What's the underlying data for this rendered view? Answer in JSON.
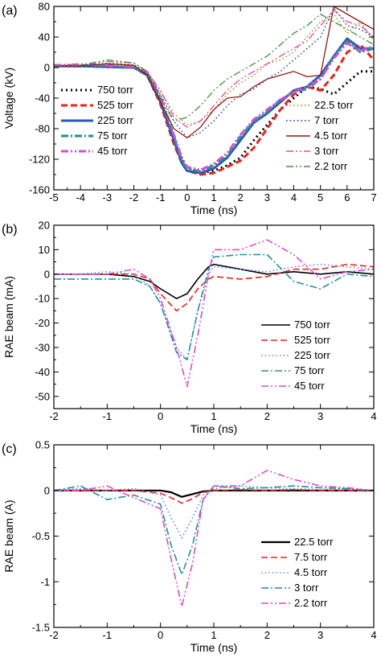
{
  "chart_data": [
    {
      "panel_label": "(a)",
      "type": "line",
      "xlabel": "Time (ns)",
      "ylabel": "Voltage (kV)",
      "xlim": [
        -5,
        7
      ],
      "ylim": [
        -160,
        80
      ],
      "xticks": [
        -5,
        -4,
        -3,
        -2,
        -1,
        0,
        1,
        2,
        3,
        4,
        5,
        6,
        7
      ],
      "yticks": [
        -160,
        -120,
        -80,
        -40,
        0,
        40,
        80
      ],
      "grid": false,
      "legends": [
        {
          "placement": "left-middle",
          "series_indices": [
            0,
            1,
            2,
            3,
            4
          ]
        },
        {
          "placement": "bottom-right",
          "series_indices": [
            5,
            6,
            7,
            8,
            9
          ]
        }
      ],
      "series": [
        {
          "name": "750 torr",
          "color": "#000000",
          "dash": "dotted-heavy",
          "width": 3,
          "x": [
            -5,
            -4,
            -3,
            -2,
            -1.5,
            -1,
            -0.5,
            -0.2,
            0,
            0.5,
            1,
            1.5,
            2,
            2.5,
            3,
            3.5,
            4,
            4.5,
            5,
            5.5,
            6,
            6.5,
            7
          ],
          "y": [
            2,
            2,
            1,
            0,
            -10,
            -45,
            -95,
            -120,
            -130,
            -138,
            -135,
            -128,
            -118,
            -95,
            -75,
            -55,
            -40,
            -25,
            -28,
            -35,
            -20,
            -5,
            -5
          ]
        },
        {
          "name": "525 torr",
          "color": "#e3261e",
          "dash": "dashed",
          "width": 3,
          "x": [
            -5,
            -4,
            -3,
            -2,
            -1.5,
            -1,
            -0.5,
            -0.2,
            0,
            0.5,
            1,
            1.5,
            2,
            2.5,
            3,
            3.5,
            4,
            4.5,
            5,
            5.5,
            6,
            6.5,
            7
          ],
          "y": [
            2,
            2,
            1,
            0,
            -10,
            -48,
            -100,
            -125,
            -135,
            -140,
            -138,
            -130,
            -122,
            -105,
            -80,
            -55,
            -35,
            -25,
            -30,
            -10,
            20,
            30,
            10
          ]
        },
        {
          "name": "225 torr",
          "color": "#2a5ab3",
          "dash": "solid",
          "width": 3,
          "x": [
            -5,
            -4,
            -3,
            -2,
            -1.5,
            -1,
            -0.5,
            -0.2,
            0,
            0.5,
            1,
            1.5,
            2,
            2.5,
            3,
            3.5,
            4,
            4.5,
            5,
            5.5,
            6,
            6.5,
            7
          ],
          "y": [
            2,
            2,
            1,
            0,
            -10,
            -45,
            -95,
            -125,
            -135,
            -138,
            -132,
            -118,
            -95,
            -72,
            -60,
            -45,
            -30,
            -25,
            -10,
            15,
            38,
            25,
            25
          ]
        },
        {
          "name": "75 torr",
          "color": "#2a8f90",
          "dash": "dashdot",
          "width": 3,
          "x": [
            -5,
            -4,
            -3,
            -2,
            -1.5,
            -1,
            -0.5,
            -0.2,
            0,
            0.5,
            1,
            1.5,
            2,
            2.5,
            3,
            3.5,
            4,
            4.5,
            5,
            5.5,
            6,
            6.5,
            7
          ],
          "y": [
            3,
            3,
            2,
            0,
            -8,
            -40,
            -90,
            -122,
            -132,
            -136,
            -128,
            -115,
            -90,
            -70,
            -58,
            -42,
            -32,
            -28,
            -15,
            15,
            35,
            20,
            25
          ]
        },
        {
          "name": "45 torr",
          "color": "#d44fd1",
          "dash": "dashdotdot",
          "width": 3,
          "x": [
            -5,
            -4,
            -3,
            -2,
            -1.5,
            -1,
            -0.5,
            -0.2,
            0,
            0.5,
            1,
            1.5,
            2,
            2.5,
            3,
            3.5,
            4,
            4.5,
            5,
            5.5,
            6,
            6.5,
            7
          ],
          "y": [
            3,
            4,
            3,
            1,
            -6,
            -38,
            -88,
            -118,
            -130,
            -134,
            -126,
            -112,
            -88,
            -68,
            -55,
            -42,
            -32,
            -25,
            -15,
            12,
            32,
            22,
            28
          ]
        },
        {
          "name": "22.5 torr",
          "color": "#8f8f17",
          "dash": "dotted",
          "width": 1.3,
          "x": [
            -5,
            -4,
            -3,
            -2,
            -1.5,
            -1,
            -0.5,
            0,
            0.5,
            1,
            1.5,
            2,
            2.5,
            3,
            3.5,
            4,
            4.5,
            5,
            5.5,
            6,
            6.5,
            7
          ],
          "y": [
            2,
            3,
            6,
            4,
            -5,
            -30,
            -60,
            -75,
            -70,
            -55,
            -35,
            -20,
            -10,
            5,
            10,
            20,
            40,
            60,
            70,
            45,
            60,
            35
          ]
        },
        {
          "name": "7 torr",
          "color": "#1f2f8f",
          "dash": "dotted",
          "width": 1.3,
          "x": [
            -5,
            -4,
            -3,
            -2,
            -1.5,
            -1,
            -0.5,
            0,
            0.5,
            1,
            1.5,
            2,
            2.5,
            3,
            3.5,
            4,
            4.5,
            5,
            5.5,
            6,
            6.5,
            7
          ],
          "y": [
            2,
            3,
            5,
            3,
            -8,
            -35,
            -70,
            -92,
            -85,
            -70,
            -50,
            -35,
            -28,
            -15,
            -5,
            10,
            25,
            40,
            78,
            55,
            50,
            40
          ]
        },
        {
          "name": "4.5 torr",
          "color": "#8a1c14",
          "dash": "solid",
          "width": 1.3,
          "x": [
            -5,
            -4,
            -3,
            -2,
            -1.5,
            -1,
            -0.5,
            0,
            0.5,
            1,
            1.5,
            2,
            2.5,
            3,
            3.5,
            4,
            4.5,
            5,
            5.5,
            6,
            6.5,
            7
          ],
          "y": [
            2,
            2,
            5,
            3,
            -10,
            -45,
            -80,
            -92,
            -78,
            -55,
            -40,
            -38,
            -25,
            -15,
            -10,
            -5,
            -12,
            -10,
            80,
            70,
            60,
            50
          ]
        },
        {
          "name": "3 torr",
          "color": "#e24a9c",
          "dash": "dashdotdot",
          "width": 1.3,
          "x": [
            -5,
            -4,
            -3,
            -2,
            -1.5,
            -1,
            -0.5,
            0,
            0.5,
            1,
            1.5,
            2,
            2.5,
            3,
            3.5,
            4,
            4.5,
            5,
            5.5,
            6,
            6.5,
            7
          ],
          "y": [
            3,
            4,
            8,
            6,
            -5,
            -30,
            -65,
            -78,
            -70,
            -50,
            -30,
            -15,
            -5,
            5,
            15,
            25,
            35,
            55,
            75,
            60,
            55,
            40
          ]
        },
        {
          "name": "2.2 torr",
          "color": "#3f8f3f",
          "dash": "dashdotdot",
          "width": 1.3,
          "x": [
            -5,
            -4,
            -3,
            -2,
            -1.5,
            -1,
            -0.5,
            0,
            0.5,
            1,
            1.5,
            2,
            2.5,
            3,
            3.5,
            4,
            4.5,
            5,
            5.5,
            6,
            6.5,
            7
          ],
          "y": [
            2,
            3,
            10,
            6,
            -5,
            -40,
            -70,
            -65,
            -50,
            -30,
            -15,
            -5,
            5,
            15,
            30,
            45,
            55,
            70,
            60,
            50,
            40,
            30
          ]
        }
      ]
    },
    {
      "panel_label": "(b)",
      "type": "line",
      "xlabel": "Time (ns)",
      "ylabel": "RAE beam (mA)",
      "xlim": [
        -2,
        4
      ],
      "ylim": [
        -55,
        20
      ],
      "xticks": [
        -2,
        -1,
        0,
        1,
        2,
        3,
        4
      ],
      "yticks": [
        -50,
        -40,
        -30,
        -20,
        -10,
        0,
        10,
        20
      ],
      "grid": false,
      "legends": [
        {
          "placement": "bottom-right",
          "series_indices": [
            0,
            1,
            2,
            3,
            4
          ]
        }
      ],
      "series": [
        {
          "name": "750 torr",
          "color": "#000000",
          "dash": "solid",
          "width": 1.6,
          "x": [
            -2,
            -1.5,
            -1,
            -0.5,
            -0.2,
            0,
            0.3,
            0.5,
            0.7,
            0.9,
            1,
            1.5,
            2,
            2.5,
            3,
            3.5,
            4
          ],
          "y": [
            0,
            0,
            0,
            -1,
            -3,
            -6,
            -10,
            -8,
            -2,
            3,
            4,
            2,
            0,
            1,
            0,
            1,
            0
          ]
        },
        {
          "name": "525 torr",
          "color": "#e3261e",
          "dash": "dashed",
          "width": 1.6,
          "x": [
            -2,
            -1.5,
            -1,
            -0.5,
            -0.2,
            0,
            0.3,
            0.5,
            0.7,
            0.9,
            1,
            1.5,
            2,
            2.5,
            3,
            3.5,
            4
          ],
          "y": [
            0,
            0,
            0,
            0,
            -2,
            -8,
            -15,
            -12,
            -6,
            -2,
            -1,
            -2,
            -1,
            2,
            2,
            4,
            3
          ]
        },
        {
          "name": "225 torr",
          "color": "#6b8fd0",
          "dash": "dotted",
          "width": 1.6,
          "x": [
            -2,
            -1.5,
            -1,
            -0.5,
            -0.2,
            0,
            0.3,
            0.5,
            0.7,
            0.9,
            1,
            1.5,
            2,
            2.5,
            3,
            3.5,
            4
          ],
          "y": [
            0,
            0,
            1,
            0,
            -5,
            -12,
            -30,
            -35,
            -15,
            0,
            3,
            2,
            1,
            3,
            4,
            3,
            2
          ]
        },
        {
          "name": "75 torr",
          "color": "#2a8f90",
          "dash": "dashdot",
          "width": 1.6,
          "x": [
            -2,
            -1.5,
            -1,
            -0.5,
            -0.2,
            0,
            0.3,
            0.5,
            0.7,
            0.9,
            1,
            1.5,
            2,
            2.5,
            3,
            3.5,
            4
          ],
          "y": [
            -2,
            -2,
            -2,
            -2,
            -5,
            -12,
            -32,
            -35,
            -15,
            2,
            7,
            8,
            8,
            -3,
            -6,
            0,
            -1
          ]
        },
        {
          "name": "45 torr",
          "color": "#d44fd1",
          "dash": "dashdotdot",
          "width": 1.6,
          "x": [
            -2,
            -1.5,
            -1,
            -0.5,
            -0.2,
            0,
            0.3,
            0.5,
            0.7,
            0.9,
            1,
            1.5,
            2,
            2.5,
            3,
            3.5,
            4
          ],
          "y": [
            0,
            0,
            0,
            2,
            -2,
            -10,
            -30,
            -46,
            -25,
            0,
            10,
            10,
            14,
            8,
            -2,
            1,
            2
          ]
        }
      ]
    },
    {
      "panel_label": "(c)",
      "type": "line",
      "xlabel": "Time (ns)",
      "ylabel": "RAE beam (A)",
      "xlim": [
        -2,
        4
      ],
      "ylim": [
        -1.5,
        0.5
      ],
      "xticks": [
        -2,
        -1,
        0,
        1,
        2,
        3,
        4
      ],
      "yticks": [
        -1.5,
        -1.0,
        -0.5,
        0.0,
        0.5
      ],
      "grid": false,
      "legends": [
        {
          "placement": "bottom-right",
          "series_indices": [
            0,
            1,
            2,
            3,
            4
          ]
        }
      ],
      "series": [
        {
          "name": "22.5 torr",
          "color": "#000000",
          "dash": "solid",
          "width": 2.2,
          "x": [
            -2,
            -1.5,
            -1,
            -0.5,
            0,
            0.2,
            0.4,
            0.6,
            0.8,
            1,
            1.5,
            2,
            2.5,
            3,
            3.5,
            4
          ],
          "y": [
            0,
            0,
            0,
            0,
            0,
            -0.02,
            -0.07,
            -0.04,
            -0.01,
            0,
            0,
            0,
            0,
            0,
            0,
            0
          ]
        },
        {
          "name": "7.5 torr",
          "color": "#e3261e",
          "dash": "dashed",
          "width": 1.6,
          "x": [
            -2,
            -1.5,
            -1,
            -0.5,
            0,
            0.2,
            0.4,
            0.6,
            0.8,
            1,
            1.5,
            2,
            2.5,
            3,
            3.5,
            4
          ],
          "y": [
            0,
            0,
            0,
            0,
            -0.03,
            -0.08,
            -0.14,
            -0.09,
            -0.02,
            0,
            0.01,
            0,
            0.01,
            0,
            0,
            0
          ]
        },
        {
          "name": "4.5 torr",
          "color": "#6b8fd0",
          "dash": "dotted",
          "width": 1.6,
          "x": [
            -2,
            -1.5,
            -1,
            -0.5,
            0,
            0.2,
            0.4,
            0.6,
            0.8,
            1,
            1.5,
            2,
            2.5,
            3,
            3.5,
            4
          ],
          "y": [
            0,
            0.02,
            0,
            0.02,
            -0.05,
            -0.3,
            -0.52,
            -0.3,
            -0.05,
            0.02,
            0.05,
            0.03,
            0.02,
            0.01,
            0.02,
            0
          ]
        },
        {
          "name": "3 torr",
          "color": "#2a8f90",
          "dash": "dashdot",
          "width": 1.6,
          "x": [
            -2,
            -1.5,
            -1,
            -0.5,
            0,
            0.2,
            0.4,
            0.6,
            0.8,
            1,
            1.5,
            2,
            2.5,
            3,
            3.5,
            4
          ],
          "y": [
            0,
            0.05,
            -0.1,
            -0.05,
            -0.15,
            -0.6,
            -0.92,
            -0.6,
            -0.1,
            0.05,
            0.02,
            0.03,
            0.05,
            0.03,
            0.02,
            0
          ]
        },
        {
          "name": "2.2 torr",
          "color": "#d44fd1",
          "dash": "dashdotdot",
          "width": 1.6,
          "x": [
            -2,
            -1.5,
            -1,
            -0.5,
            0,
            0.2,
            0.4,
            0.6,
            0.8,
            1,
            1.5,
            2,
            2.5,
            3,
            3.5,
            4
          ],
          "y": [
            0,
            0,
            0.05,
            -0.08,
            -0.2,
            -0.75,
            -1.27,
            -0.8,
            -0.1,
            0.05,
            0.05,
            0.22,
            0.12,
            0.05,
            0.03,
            0
          ]
        }
      ]
    }
  ]
}
